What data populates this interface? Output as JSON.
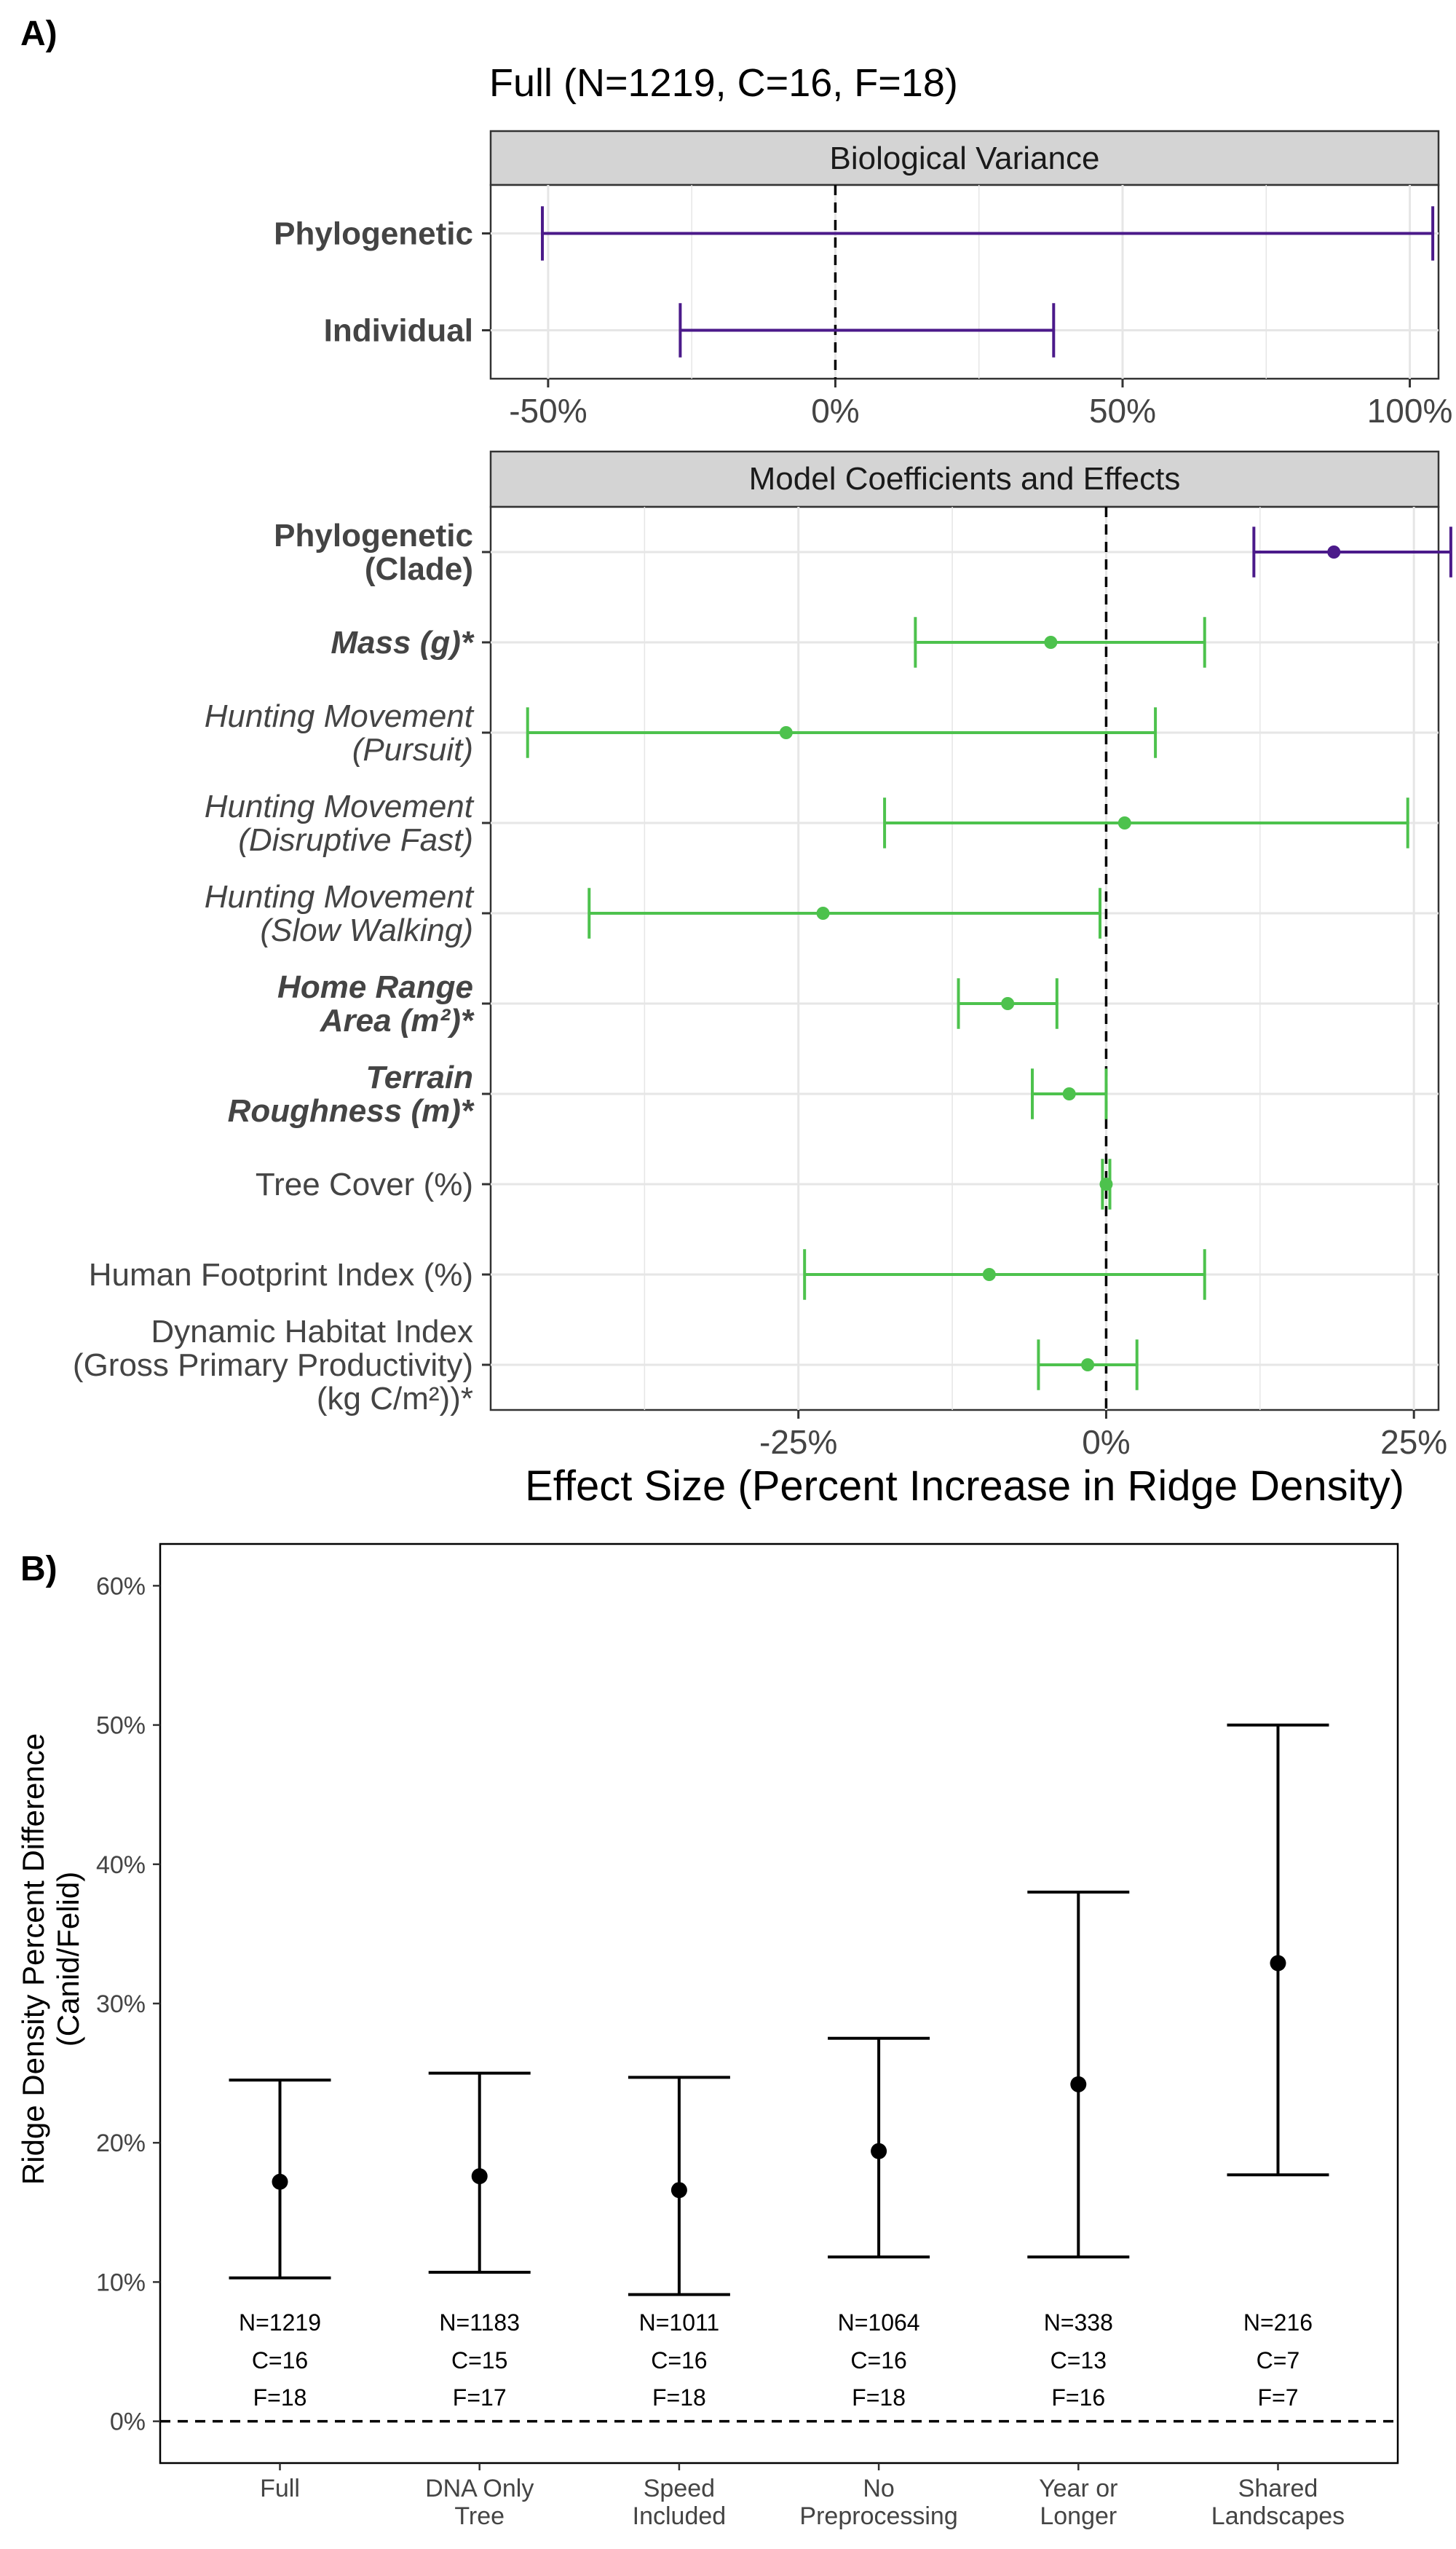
{
  "panel_labels": {
    "a": "A)",
    "b": "B)"
  },
  "colors": {
    "phylo": "#4b1a8a",
    "covariate": "#4dc24d",
    "marker": "#000000",
    "grid": "#e6e6e6",
    "strip": "#d4d4d4"
  },
  "chart_data": [
    {
      "type": "scatter",
      "subtype": "interval",
      "title": "Full (N=1219, C=16, F=18)",
      "facet": "Biological Variance",
      "xlim": [
        -60,
        105
      ],
      "xticks": [
        -50,
        0,
        50,
        100
      ],
      "xtick_labels": [
        "-50%",
        "0%",
        "50%",
        "100%"
      ],
      "rows": [
        {
          "label": "Phylogenetic",
          "bold": true,
          "italic": false,
          "low": -51,
          "high": 104,
          "point": null,
          "color": "phylo"
        },
        {
          "label": "Individual",
          "bold": true,
          "italic": false,
          "low": -27,
          "high": 38,
          "point": null,
          "color": "phylo"
        }
      ],
      "reference_line": 0
    },
    {
      "type": "scatter",
      "subtype": "interval",
      "facet": "Model Coefficients and Effects",
      "xlabel": "Effect Size (Percent Increase in Ridge Density)",
      "xlim": [
        -50,
        27
      ],
      "xticks": [
        -25,
        0,
        25
      ],
      "xtick_labels": [
        "-25%",
        "0%",
        "25%"
      ],
      "rows": [
        {
          "label": [
            "Phylogenetic",
            "(Clade)"
          ],
          "bold": true,
          "italic": false,
          "low": 12,
          "high": 28,
          "point": 18.5,
          "color": "phylo"
        },
        {
          "label": [
            "Mass (g)*"
          ],
          "bold": true,
          "italic": true,
          "low": -15.5,
          "high": 8,
          "point": -4.5,
          "color": "covariate"
        },
        {
          "label": [
            "Hunting Movement",
            "(Pursuit)"
          ],
          "bold": false,
          "italic": true,
          "low": -47,
          "high": 4,
          "point": -26,
          "color": "covariate"
        },
        {
          "label": [
            "Hunting Movement",
            "(Disruptive Fast)"
          ],
          "bold": false,
          "italic": true,
          "low": -18,
          "high": 24.5,
          "point": 1.5,
          "color": "covariate"
        },
        {
          "label": [
            "Hunting Movement",
            "(Slow Walking)"
          ],
          "bold": false,
          "italic": true,
          "low": -42,
          "high": -0.5,
          "point": -23,
          "color": "covariate"
        },
        {
          "label": [
            "Home Range",
            "Area (m²)*"
          ],
          "bold": true,
          "italic": true,
          "low": -12,
          "high": -4,
          "point": -8,
          "color": "covariate"
        },
        {
          "label": [
            "Terrain",
            "Roughness (m)*"
          ],
          "bold": true,
          "italic": true,
          "low": -6,
          "high": 0,
          "point": -3,
          "color": "covariate"
        },
        {
          "label": [
            "Tree Cover (%)"
          ],
          "bold": false,
          "italic": false,
          "low": -0.3,
          "high": 0.3,
          "point": 0,
          "color": "covariate"
        },
        {
          "label": [
            "Human Footprint Index (%)"
          ],
          "bold": false,
          "italic": false,
          "low": -24.5,
          "high": 8,
          "point": -9.5,
          "color": "covariate"
        },
        {
          "label": [
            "Dynamic Habitat Index",
            "(Gross Primary Productivity)",
            "(kg C/m²))*"
          ],
          "bold": false,
          "italic": false,
          "low": -5.5,
          "high": 2.5,
          "point": -1.5,
          "color": "covariate"
        }
      ],
      "reference_line": 0
    },
    {
      "type": "scatter",
      "subtype": "interval",
      "ylabel": [
        "Ridge Density Percent Difference",
        "(Canid/Felid)"
      ],
      "ylim": [
        -3,
        63
      ],
      "yticks": [
        0,
        10,
        20,
        30,
        40,
        50,
        60
      ],
      "ytick_labels": [
        "0%",
        "10%",
        "20%",
        "30%",
        "40%",
        "50%",
        "60%"
      ],
      "categories": [
        {
          "label": [
            "Full"
          ],
          "point": 17.2,
          "low": 10.3,
          "high": 24.5,
          "n": "N=1219",
          "c": "C=16",
          "f": "F=18"
        },
        {
          "label": [
            "DNA Only",
            "Tree"
          ],
          "point": 17.6,
          "low": 10.7,
          "high": 25,
          "n": "N=1183",
          "c": "C=15",
          "f": "F=17"
        },
        {
          "label": [
            "Speed",
            "Included"
          ],
          "point": 16.6,
          "low": 9.1,
          "high": 24.7,
          "n": "N=1011",
          "c": "C=16",
          "f": "F=18"
        },
        {
          "label": [
            "No",
            "Preprocessing"
          ],
          "point": 19.4,
          "low": 11.8,
          "high": 27.5,
          "n": "N=1064",
          "c": "C=16",
          "f": "F=18"
        },
        {
          "label": [
            "Year or",
            "Longer"
          ],
          "point": 24.2,
          "low": 11.8,
          "high": 38,
          "n": "N=338",
          "c": "C=13",
          "f": "F=16"
        },
        {
          "label": [
            "Shared",
            "Landscapes"
          ],
          "point": 32.9,
          "low": 17.7,
          "high": 50,
          "n": "N=216",
          "c": "C=7",
          "f": "F=7"
        }
      ],
      "reference_line": 0
    }
  ]
}
